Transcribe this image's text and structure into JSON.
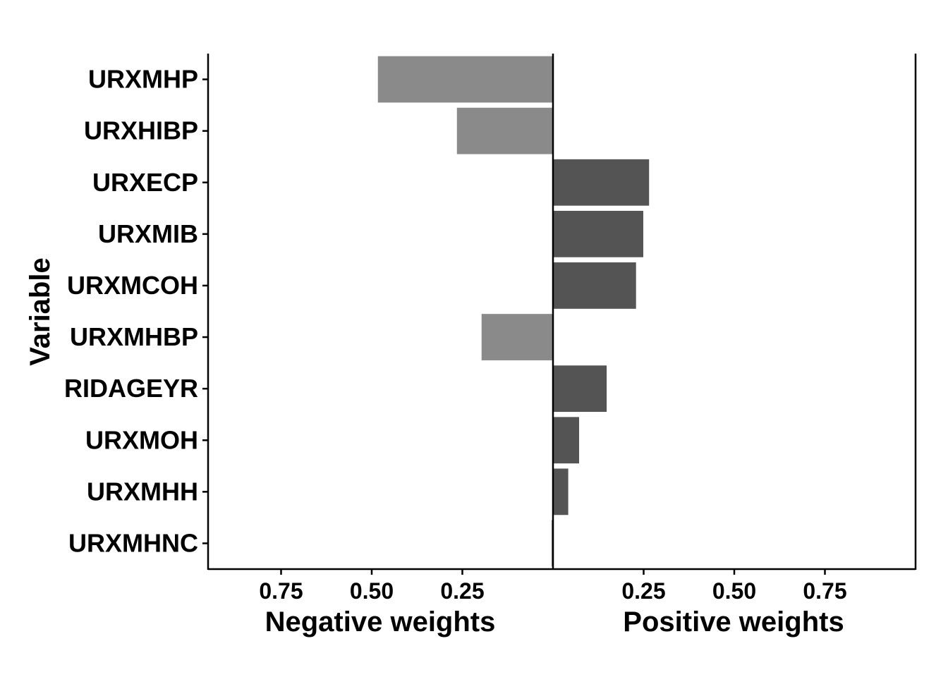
{
  "chart_data": {
    "type": "bar",
    "orientation": "horizontal-diverging",
    "ylabel": "Variable",
    "left_xlabel": "Negative weights",
    "right_xlabel": "Positive weights",
    "xlim": [
      -0.95,
      1.0
    ],
    "xticks": [
      {
        "value": -0.75,
        "label": "0.75"
      },
      {
        "value": -0.5,
        "label": "0.50"
      },
      {
        "value": -0.25,
        "label": "0.25"
      },
      {
        "value": 0.25,
        "label": "0.25"
      },
      {
        "value": 0.5,
        "label": "0.50"
      },
      {
        "value": 0.75,
        "label": "0.75"
      }
    ],
    "categories": [
      "URXMHP",
      "URXHIBP",
      "URXECP",
      "URXMIB",
      "URXMCOH",
      "URXMHBP",
      "RIDAGEYR",
      "URXMOH",
      "URXMHH",
      "URXMHNC"
    ],
    "values": [
      -0.483,
      -0.265,
      0.265,
      0.249,
      0.229,
      -0.197,
      0.148,
      0.072,
      0.042,
      -0.004
    ],
    "colors": {
      "negative": "#8a8a8a",
      "positive": "#545454"
    },
    "grid": false,
    "legend": "none"
  }
}
